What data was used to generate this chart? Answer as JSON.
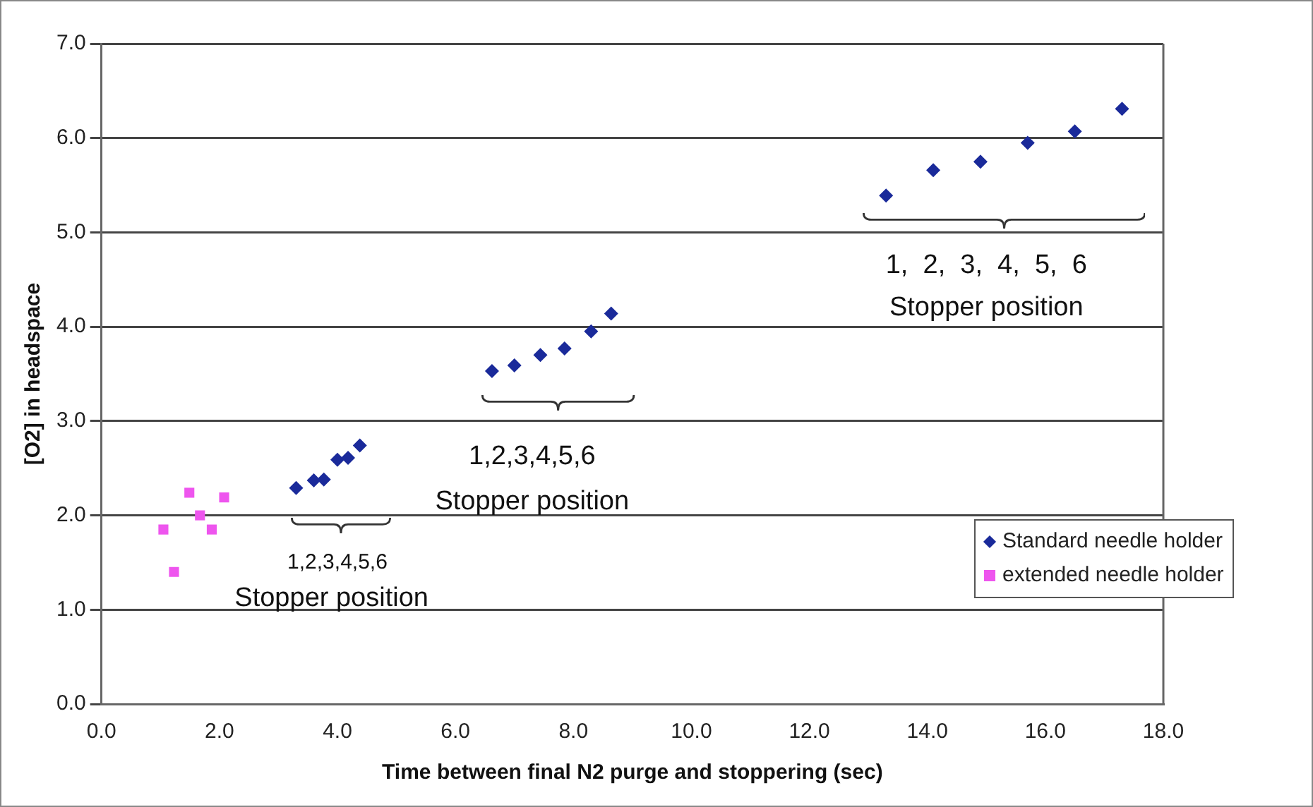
{
  "chart_data": {
    "type": "scatter",
    "xlabel": "Time between final N2 purge and stoppering (sec)",
    "ylabel": "[O2] in headspace",
    "series": [
      {
        "name": "Standard needle holder",
        "color": "#1a2a9a",
        "marker": "diamond",
        "x": [
          3.3,
          3.6,
          3.77,
          4.0,
          4.18,
          4.38,
          6.62,
          7.0,
          7.44,
          7.85,
          8.3,
          8.64,
          13.3,
          14.1,
          14.9,
          15.7,
          16.5,
          17.3
        ],
        "values": [
          2.29,
          2.37,
          2.38,
          2.59,
          2.61,
          2.74,
          3.53,
          3.59,
          3.7,
          3.77,
          3.95,
          4.14,
          5.39,
          5.66,
          5.75,
          5.95,
          6.07,
          6.31
        ]
      },
      {
        "name": "extended needle holder",
        "color": "#ee55ee",
        "marker": "square",
        "x": [
          1.05,
          1.23,
          1.49,
          1.67,
          1.87,
          2.08
        ],
        "values": [
          1.85,
          1.4,
          2.24,
          2.0,
          1.85,
          2.19
        ]
      }
    ],
    "xlim": [
      0,
      18
    ],
    "xticks": [
      {
        "value": 0,
        "label": "0.0"
      },
      {
        "value": 2,
        "label": "2.0"
      },
      {
        "value": 4,
        "label": "4.0"
      },
      {
        "value": 6,
        "label": "6.0"
      },
      {
        "value": 8,
        "label": "8.0"
      },
      {
        "value": 10,
        "label": "10.0"
      },
      {
        "value": 12,
        "label": "12.0"
      },
      {
        "value": 14,
        "label": "14.0"
      },
      {
        "value": 16,
        "label": "16.0"
      },
      {
        "value": 18,
        "label": "18.0"
      }
    ],
    "ylim": [
      0,
      7
    ],
    "yticks": [
      {
        "value": 0,
        "label": "0.0"
      },
      {
        "value": 1,
        "label": "1.0"
      },
      {
        "value": 2,
        "label": "2.0"
      },
      {
        "value": 3,
        "label": "3.0"
      },
      {
        "value": 4,
        "label": "4.0"
      },
      {
        "value": 5,
        "label": "5.0"
      },
      {
        "value": 6,
        "label": "6.0"
      },
      {
        "value": 7,
        "label": "7.0"
      }
    ],
    "grid": "y",
    "legend": "bottom right",
    "annotations": [
      "1,2,3,4,5,6",
      "Stopper position",
      "1,2,3,4,5,6",
      "Stopper position",
      "1,  2,  3,  4,  5,  6",
      "Stopper position"
    ]
  }
}
